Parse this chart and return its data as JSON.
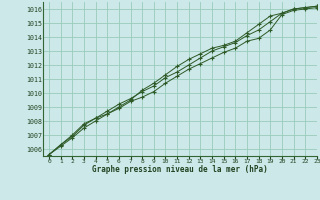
{
  "title": "Graphe pression niveau de la mer (hPa)",
  "background_color": "#cce8e8",
  "grid_color": "#99ccbb",
  "line_color": "#2d5a27",
  "xlim": [
    -0.5,
    23
  ],
  "ylim": [
    1005.5,
    1016.5
  ],
  "yticks": [
    1006,
    1007,
    1008,
    1009,
    1010,
    1011,
    1012,
    1013,
    1014,
    1015,
    1016
  ],
  "xticks": [
    0,
    1,
    2,
    3,
    4,
    5,
    6,
    7,
    8,
    9,
    10,
    11,
    12,
    13,
    14,
    15,
    16,
    17,
    18,
    19,
    20,
    21,
    22,
    23
  ],
  "line1_x": [
    0,
    1,
    2,
    3,
    4,
    5,
    6,
    7,
    8,
    9,
    10,
    11,
    12,
    13,
    14,
    15,
    16,
    17,
    18,
    19,
    20,
    21,
    22,
    23
  ],
  "line1": [
    1005.6,
    1006.3,
    1006.9,
    1007.7,
    1008.2,
    1008.5,
    1008.9,
    1009.4,
    1009.7,
    1010.1,
    1010.7,
    1011.2,
    1011.7,
    1012.1,
    1012.5,
    1012.9,
    1013.2,
    1013.7,
    1013.9,
    1014.5,
    1015.6,
    1015.9,
    1016.0,
    1016.1
  ],
  "line2": [
    1005.6,
    1006.3,
    1007.0,
    1007.8,
    1008.2,
    1008.7,
    1009.2,
    1009.6,
    1010.1,
    1010.5,
    1011.1,
    1011.5,
    1012.0,
    1012.5,
    1013.0,
    1013.3,
    1013.6,
    1014.1,
    1014.5,
    1015.1,
    1015.7,
    1016.0,
    1016.1,
    1016.2
  ],
  "line3": [
    1005.6,
    1006.2,
    1006.8,
    1007.5,
    1008.0,
    1008.5,
    1009.0,
    1009.5,
    1010.2,
    1010.7,
    1011.3,
    1011.9,
    1012.4,
    1012.8,
    1013.2,
    1013.4,
    1013.7,
    1014.3,
    1014.9,
    1015.5,
    1015.7,
    1016.0,
    1016.1,
    1016.2
  ]
}
